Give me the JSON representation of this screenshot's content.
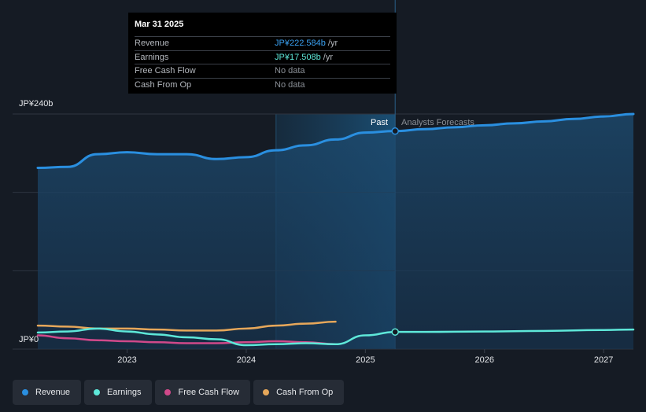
{
  "tooltip": {
    "date": "Mar 31 2025",
    "rows": [
      {
        "label": "Revenue",
        "value": "JP¥222.584b",
        "unit": " /yr"
      },
      {
        "label": "Earnings",
        "value": "JP¥17.508b",
        "unit": " /yr"
      },
      {
        "label": "Free Cash Flow",
        "value": "No data",
        "unit": ""
      },
      {
        "label": "Cash From Op",
        "value": "No data",
        "unit": ""
      }
    ]
  },
  "labels": {
    "past": "Past",
    "forecast": "Analysts Forecasts"
  },
  "legend": [
    {
      "label": "Revenue",
      "color": "#2a8fe0"
    },
    {
      "label": "Earnings",
      "color": "#5ee8d9"
    },
    {
      "label": "Free Cash Flow",
      "color": "#d0498a"
    },
    {
      "label": "Cash From Op",
      "color": "#e6a75a"
    }
  ],
  "colors": {
    "revenue": "#2a8fe0",
    "earnings": "#5ee8d9",
    "fcf": "#d0498a",
    "cfo": "#e6a75a",
    "background": "#151b24"
  },
  "chart_data": {
    "type": "line",
    "title": "",
    "xlabel": "",
    "ylabel": "",
    "xlim": [
      2022.2,
      2027.25
    ],
    "ylim": [
      0,
      240
    ],
    "y_tick_labels": [
      "JP¥0",
      "JP¥240b"
    ],
    "x_ticks": [
      2023,
      2024,
      2025,
      2026,
      2027
    ],
    "x_tick_labels": [
      "2023",
      "2024",
      "2025",
      "2026",
      "2027"
    ],
    "highlight_range": [
      2024.25,
      2025.25
    ],
    "divider_x": 2025.25,
    "series": [
      {
        "name": "Revenue",
        "key": "revenue",
        "x": [
          2022.25,
          2022.5,
          2022.75,
          2023.0,
          2023.25,
          2023.5,
          2023.75,
          2024.0,
          2024.25,
          2024.5,
          2024.75,
          2025.0,
          2025.25,
          2025.5,
          2025.75,
          2026.0,
          2026.25,
          2026.5,
          2026.75,
          2027.0,
          2027.25
        ],
        "values": [
          185,
          186,
          199,
          201,
          199,
          199,
          194,
          196,
          203,
          208,
          214,
          221,
          222.6,
          224.5,
          226.5,
          228.5,
          230.5,
          232.5,
          235,
          237.5,
          240
        ]
      },
      {
        "name": "Earnings",
        "key": "earnings",
        "x": [
          2022.25,
          2022.5,
          2022.75,
          2023.0,
          2023.25,
          2023.5,
          2023.75,
          2024.0,
          2024.25,
          2024.5,
          2024.75,
          2025.0,
          2025.25,
          2025.5,
          2026.0,
          2026.5,
          2027.0,
          2027.25
        ],
        "values": [
          17,
          18,
          21,
          18,
          15,
          12,
          10,
          4,
          5,
          6,
          5,
          14,
          17.5,
          17.6,
          18,
          18.6,
          19.5,
          20
        ]
      },
      {
        "name": "Free Cash Flow",
        "key": "fcf",
        "x": [
          2022.25,
          2022.5,
          2022.75,
          2023.0,
          2023.25,
          2023.5,
          2023.75,
          2024.0,
          2024.25,
          2024.5,
          2024.75
        ],
        "values": [
          14,
          11,
          9,
          8,
          7,
          6,
          6,
          7,
          8,
          7,
          5
        ]
      },
      {
        "name": "Cash From Op",
        "key": "cfo",
        "x": [
          2022.25,
          2022.5,
          2022.75,
          2023.0,
          2023.25,
          2023.5,
          2023.75,
          2024.0,
          2024.25,
          2024.5,
          2024.75
        ],
        "values": [
          24,
          23,
          21,
          21,
          20,
          19,
          19,
          21,
          24,
          26,
          28
        ]
      }
    ]
  }
}
